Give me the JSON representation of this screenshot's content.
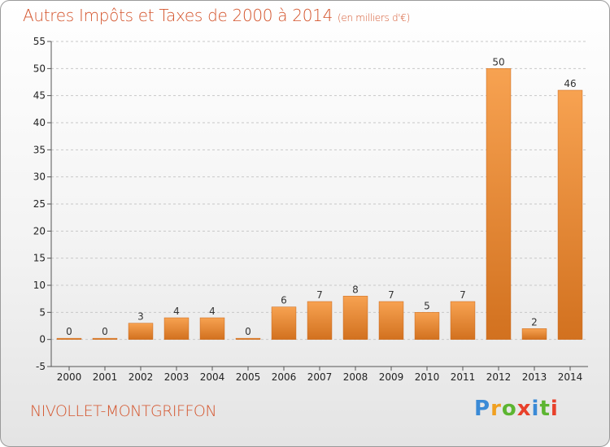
{
  "title": "Autres Impôts et Taxes de 2000 à 2014",
  "subtitle": "(en milliers d'€)",
  "commune": "NIVOLLET-MONTGRIFFON",
  "logo": {
    "letters": [
      "P",
      "r",
      "o",
      "x",
      "i",
      "t",
      "i"
    ],
    "colors": [
      "#3a8ad6",
      "#f0a020",
      "#5cb531",
      "#e8402a",
      "#3a8ad6",
      "#5cb531",
      "#e8402a"
    ]
  },
  "colors": {
    "bar_top": "#f7a251",
    "bar_bottom": "#d2711f",
    "title": "#d4542c",
    "grid": "#c8c8c8"
  },
  "chart_data": {
    "type": "bar",
    "title": "Autres Impôts et Taxes de 2000 à 2014",
    "subtitle": "(en milliers d'€)",
    "xlabel": "",
    "ylabel": "",
    "categories": [
      "2000",
      "2001",
      "2002",
      "2003",
      "2004",
      "2005",
      "2006",
      "2007",
      "2008",
      "2009",
      "2010",
      "2011",
      "2012",
      "2013",
      "2014"
    ],
    "values": [
      0,
      0,
      3,
      4,
      4,
      0,
      6,
      7,
      8,
      7,
      5,
      7,
      50,
      2,
      46
    ],
    "ylim": [
      -5,
      55
    ],
    "yticks": [
      -5,
      0,
      5,
      10,
      15,
      20,
      25,
      30,
      35,
      40,
      45,
      50,
      55
    ],
    "grid": true,
    "grid_style": "dashed",
    "legend": "none"
  }
}
